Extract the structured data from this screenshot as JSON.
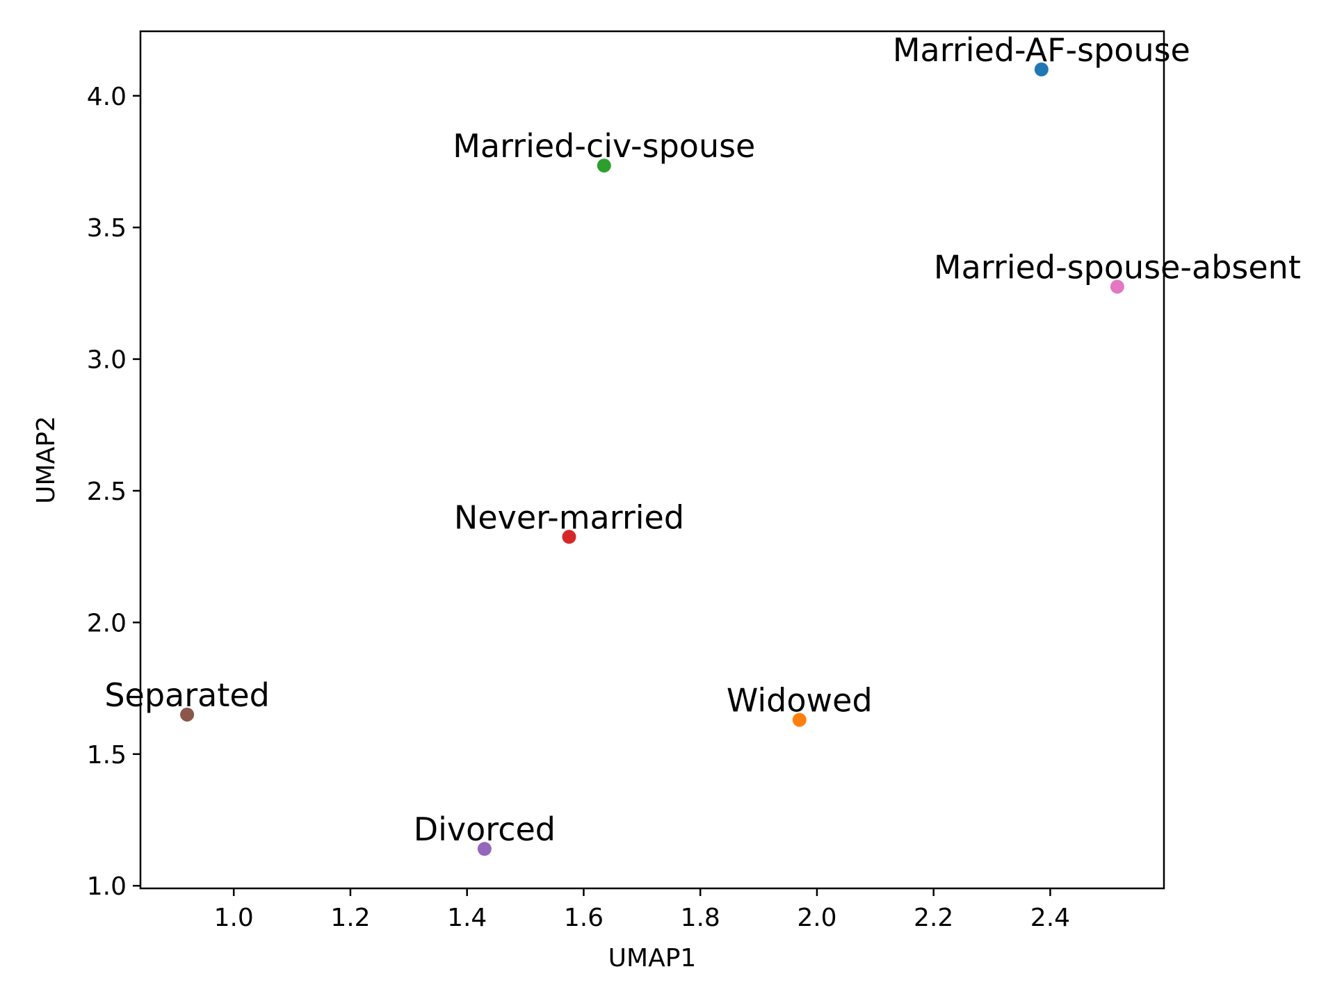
{
  "chart_data": {
    "type": "scatter",
    "title": "",
    "xlabel": "UMAP1",
    "ylabel": "UMAP2",
    "xlim": [
      0.84,
      2.595
    ],
    "ylim": [
      0.99,
      4.245
    ],
    "xticks": [
      "1.0",
      "1.2",
      "1.4",
      "1.6",
      "1.8",
      "2.0",
      "2.2",
      "2.4"
    ],
    "yticks": [
      "1.0",
      "1.5",
      "2.0",
      "2.5",
      "3.0",
      "3.5",
      "4.0"
    ],
    "grid": false,
    "points": [
      {
        "label": "Married-AF-spouse",
        "x": 2.385,
        "y": 4.1,
        "color": "#1f77b4"
      },
      {
        "label": "Widowed",
        "x": 1.97,
        "y": 1.63,
        "color": "#ff7f0e"
      },
      {
        "label": "Married-civ-spouse",
        "x": 1.635,
        "y": 3.735,
        "color": "#2ca02c"
      },
      {
        "label": "Never-married",
        "x": 1.575,
        "y": 2.325,
        "color": "#d62728"
      },
      {
        "label": "Divorced",
        "x": 1.43,
        "y": 1.14,
        "color": "#9467bd"
      },
      {
        "label": "Separated",
        "x": 0.92,
        "y": 1.65,
        "color": "#8c564b"
      },
      {
        "label": "Married-spouse-absent",
        "x": 2.515,
        "y": 3.275,
        "color": "#e377c2"
      }
    ]
  }
}
